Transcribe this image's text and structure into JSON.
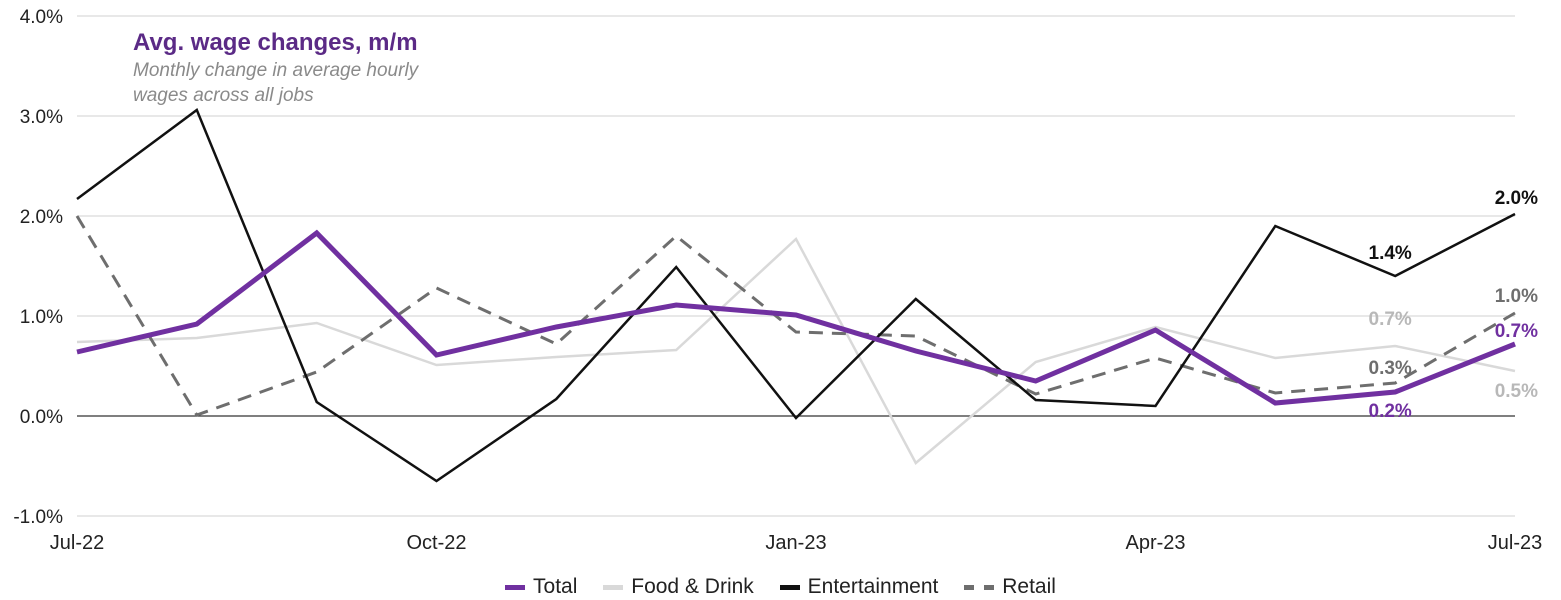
{
  "chart_data": {
    "type": "line",
    "title": "Avg. wage changes, m/m",
    "subtitle": "Monthly change in average hourly wages across all jobs",
    "x": [
      "Jul-22",
      "Aug-22",
      "Sep-22",
      "Oct-22",
      "Nov-22",
      "Dec-22",
      "Jan-23",
      "Feb-23",
      "Mar-23",
      "Apr-23",
      "May-23",
      "Jun-23",
      "Jul-23"
    ],
    "x_tick_labels": [
      "Jul-22",
      "",
      "",
      "Oct-22",
      "",
      "",
      "Jan-23",
      "",
      "",
      "Apr-23",
      "",
      "",
      "Jul-23"
    ],
    "ylim": [
      -1.0,
      4.0
    ],
    "y_ticks": [
      -1.0,
      0.0,
      1.0,
      2.0,
      3.0,
      4.0
    ],
    "y_tick_labels": [
      "-1.0%",
      "0.0%",
      "1.0%",
      "2.0%",
      "3.0%",
      "4.0%"
    ],
    "grid": true,
    "legend_position": "bottom",
    "series": [
      {
        "name": "Total",
        "color": "#7030a0",
        "style": "solid-thick",
        "values": [
          0.64,
          0.92,
          1.83,
          0.61,
          0.89,
          1.11,
          1.01,
          0.65,
          0.35,
          0.86,
          0.13,
          0.24,
          0.72
        ]
      },
      {
        "name": "Food & Drink",
        "color": "#d9d9d9",
        "style": "solid",
        "values": [
          0.74,
          0.78,
          0.93,
          0.51,
          0.59,
          0.66,
          1.77,
          -0.47,
          0.54,
          0.89,
          0.58,
          0.7,
          0.45
        ]
      },
      {
        "name": "Entertainment",
        "color": "#111111",
        "style": "solid",
        "values": [
          2.17,
          3.06,
          0.14,
          -0.65,
          0.17,
          1.49,
          -0.02,
          1.17,
          0.16,
          0.1,
          1.9,
          1.4,
          2.02
        ]
      },
      {
        "name": "Retail",
        "color": "#6e6e6e",
        "style": "dashed",
        "values": [
          2.0,
          0.01,
          0.44,
          1.28,
          0.72,
          1.8,
          0.84,
          0.8,
          0.22,
          0.58,
          0.23,
          0.33,
          1.03
        ]
      }
    ],
    "annotations": [
      {
        "text": "2.0%",
        "series": "Entertainment",
        "x": "Jul-23",
        "color": "#111111"
      },
      {
        "text": "1.4%",
        "series": "Entertainment",
        "x": "Jun-23",
        "color": "#111111"
      },
      {
        "text": "1.0%",
        "series": "Retail",
        "x": "Jul-23",
        "color": "#6e6e6e"
      },
      {
        "text": "0.7%",
        "series": "Food & Drink",
        "x": "Jun-23",
        "color": "#b8b8b8"
      },
      {
        "text": "0.7%",
        "series": "Total",
        "x": "Jul-23",
        "color": "#7030a0"
      },
      {
        "text": "0.3%",
        "series": "Retail",
        "x": "Jun-23",
        "color": "#6e6e6e"
      },
      {
        "text": "0.2%",
        "series": "Total",
        "x": "Jun-23",
        "color": "#7030a0"
      },
      {
        "text": "0.5%",
        "series": "Food & Drink",
        "x": "Jul-23",
        "color": "#b8b8b8"
      }
    ]
  }
}
